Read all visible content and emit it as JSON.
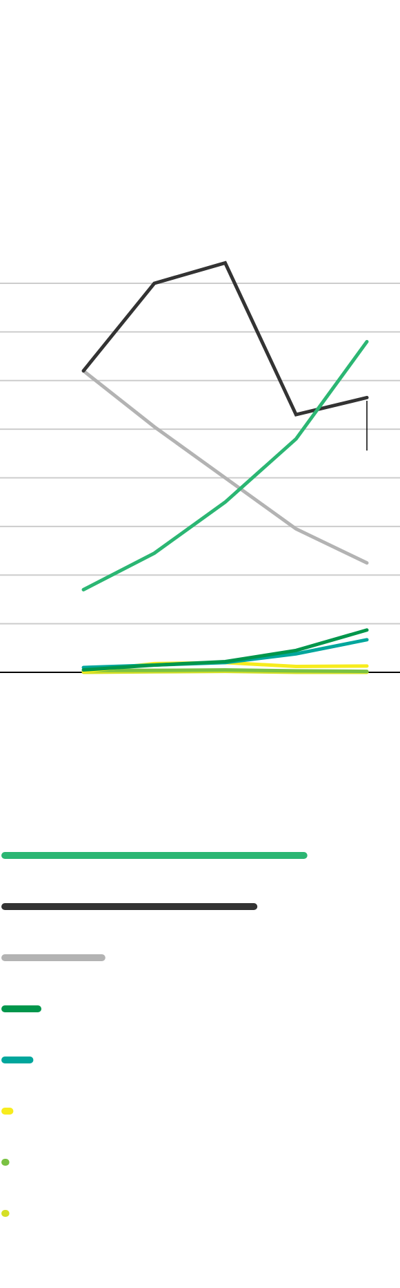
{
  "chart_data": {
    "type": "line",
    "x": [
      1,
      2,
      3,
      4,
      5
    ],
    "ylim": [
      0,
      8
    ],
    "gridlines": [
      0,
      1,
      2,
      3,
      4,
      5,
      6,
      7,
      8
    ],
    "grid": true,
    "legend_placement": "bottom",
    "series": [
      {
        "key": "green",
        "color": "#2bb673",
        "values": [
          1.7,
          2.45,
          3.5,
          4.8,
          6.8
        ],
        "legend_share": 0.765
      },
      {
        "key": "dark",
        "color": "#333333",
        "values": [
          6.2,
          8.0,
          8.42,
          5.3,
          5.65
        ],
        "legend_share": 0.64
      },
      {
        "key": "gray",
        "color": "#b3b3b3",
        "values": [
          6.2,
          5.05,
          4.0,
          2.95,
          2.25
        ],
        "legend_share": 0.26
      },
      {
        "key": "darkgreen",
        "color": "#00964b",
        "values": [
          0.05,
          0.15,
          0.22,
          0.45,
          0.87
        ],
        "legend_share": 0.1
      },
      {
        "key": "teal",
        "color": "#00a69c",
        "values": [
          0.1,
          0.15,
          0.2,
          0.38,
          0.67
        ],
        "legend_share": 0.08
      },
      {
        "key": "yellow",
        "color": "#f7ec1d",
        "values": [
          0.02,
          0.18,
          0.2,
          0.12,
          0.13
        ],
        "legend_share": 0.03
      },
      {
        "key": "lightgreen",
        "color": "#7ac143",
        "values": [
          0.04,
          0.04,
          0.05,
          0.03,
          0.02
        ],
        "legend_share": 0.02
      },
      {
        "key": "lime",
        "color": "#d5df26",
        "values": [
          0.0,
          0.01,
          0.02,
          0.0,
          0.0
        ],
        "legend_share": 0.02
      }
    ]
  }
}
